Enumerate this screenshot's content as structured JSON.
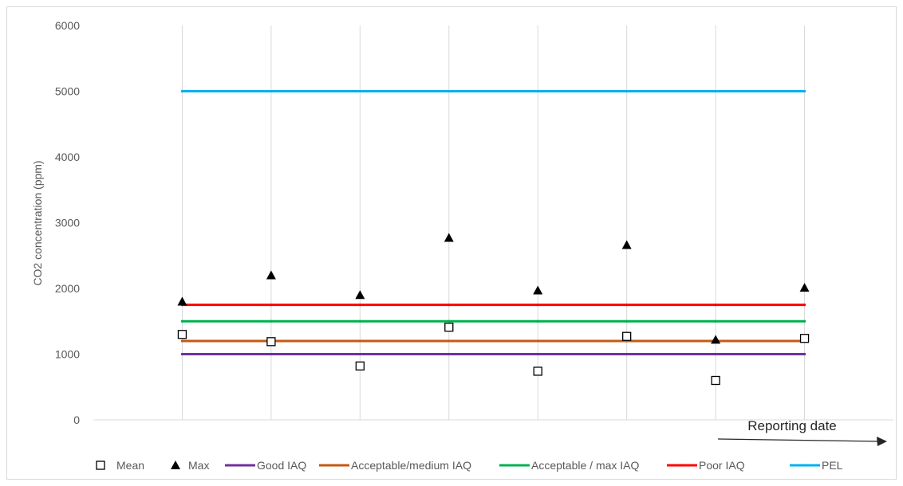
{
  "chart_data": {
    "type": "scatter",
    "ylabel": "CO2 concentration (ppm)",
    "xlabel": "",
    "ylim": [
      0,
      6000
    ],
    "y_ticks": [
      "0",
      "1000",
      "2000",
      "3000",
      "4000",
      "5000",
      "6000"
    ],
    "x_points": [
      1,
      2,
      3,
      4,
      5,
      6,
      7,
      8
    ],
    "xlim": [
      0,
      9
    ],
    "grid": "vertical",
    "annotation": "Reporting date",
    "legend_position": "bottom",
    "series": [
      {
        "name": "Mean",
        "kind": "marker",
        "marker": "open-square",
        "color": "#000000",
        "values": [
          1300,
          1190,
          820,
          1410,
          740,
          1270,
          600,
          1240
        ]
      },
      {
        "name": "Max",
        "kind": "marker",
        "marker": "filled-triangle",
        "color": "#000000",
        "values": [
          1800,
          2200,
          1900,
          2770,
          1970,
          2660,
          1220,
          2010
        ]
      },
      {
        "name": "Good IAQ",
        "kind": "line",
        "color": "#7030a0",
        "value": 1000
      },
      {
        "name": "Acceptable/medium IAQ",
        "kind": "line",
        "color": "#c55a11",
        "value": 1200
      },
      {
        "name": "Acceptable / max IAQ",
        "kind": "line",
        "color": "#00b050",
        "value": 1500
      },
      {
        "name": "Poor IAQ",
        "kind": "line",
        "color": "#ff0000",
        "value": 1750
      },
      {
        "name": "PEL",
        "kind": "line",
        "color": "#00b0f0",
        "value": 5000
      }
    ]
  }
}
